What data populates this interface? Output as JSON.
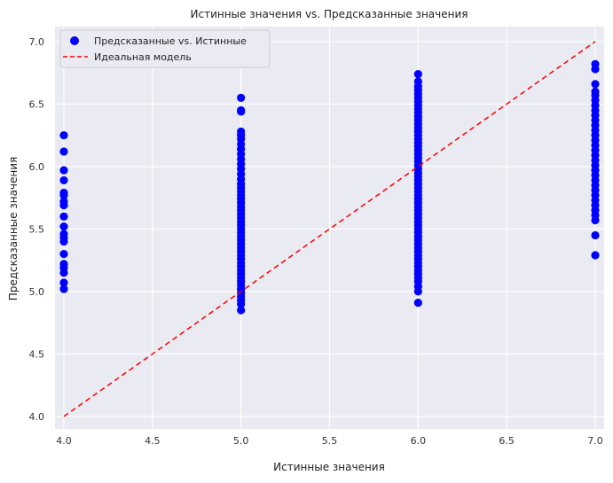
{
  "chart_data": {
    "type": "scatter",
    "title": "Истинные значения vs. Предсказанные значения",
    "xlabel": "Истинные значения",
    "ylabel": "Предсказанные значения",
    "xlim": [
      3.95,
      7.05
    ],
    "ylim": [
      3.9,
      7.12
    ],
    "xticks": [
      "4.0",
      "4.5",
      "5.0",
      "5.5",
      "6.0",
      "6.5",
      "7.0"
    ],
    "yticks": [
      "4.0",
      "4.5",
      "5.0",
      "5.5",
      "6.0",
      "6.5",
      "7.0"
    ],
    "grid": true,
    "legend_position": "top-left",
    "background_color": "#eaeaf2",
    "series": [
      {
        "name": "Предсказанные vs. Истинные",
        "kind": "scatter",
        "color": "#0000ff",
        "points": [
          [
            4,
            6.25
          ],
          [
            4,
            6.12
          ],
          [
            4,
            5.97
          ],
          [
            4,
            5.89
          ],
          [
            4,
            5.79
          ],
          [
            4,
            5.77
          ],
          [
            4,
            5.72
          ],
          [
            4,
            5.69
          ],
          [
            4,
            5.6
          ],
          [
            4,
            5.52
          ],
          [
            4,
            5.46
          ],
          [
            4,
            5.43
          ],
          [
            4,
            5.4
          ],
          [
            4,
            5.3
          ],
          [
            4,
            5.22
          ],
          [
            4,
            5.19
          ],
          [
            4,
            5.15
          ],
          [
            4,
            5.07
          ],
          [
            4,
            5.02
          ],
          [
            5,
            6.55
          ],
          [
            5,
            6.45
          ],
          [
            5,
            6.44
          ],
          [
            5,
            6.28
          ],
          [
            5,
            6.25
          ],
          [
            5,
            6.22
          ],
          [
            5,
            6.18
          ],
          [
            5,
            6.14
          ],
          [
            5,
            6.1
          ],
          [
            5,
            6.06
          ],
          [
            5,
            6.02
          ],
          [
            5,
            5.98
          ],
          [
            5,
            5.94
          ],
          [
            5,
            5.9
          ],
          [
            5,
            5.86
          ],
          [
            5,
            5.83
          ],
          [
            5,
            5.8
          ],
          [
            5,
            5.77
          ],
          [
            5,
            5.74
          ],
          [
            5,
            5.71
          ],
          [
            5,
            5.68
          ],
          [
            5,
            5.65
          ],
          [
            5,
            5.62
          ],
          [
            5,
            5.59
          ],
          [
            5,
            5.56
          ],
          [
            5,
            5.53
          ],
          [
            5,
            5.5
          ],
          [
            5,
            5.47
          ],
          [
            5,
            5.44
          ],
          [
            5,
            5.41
          ],
          [
            5,
            5.38
          ],
          [
            5,
            5.35
          ],
          [
            5,
            5.32
          ],
          [
            5,
            5.29
          ],
          [
            5,
            5.26
          ],
          [
            5,
            5.23
          ],
          [
            5,
            5.2
          ],
          [
            5,
            5.17
          ],
          [
            5,
            5.14
          ],
          [
            5,
            5.11
          ],
          [
            5,
            5.08
          ],
          [
            5,
            5.05
          ],
          [
            5,
            5.02
          ],
          [
            5,
            4.99
          ],
          [
            5,
            4.96
          ],
          [
            5,
            4.93
          ],
          [
            5,
            4.9
          ],
          [
            5,
            4.85
          ],
          [
            6,
            6.74
          ],
          [
            6,
            6.68
          ],
          [
            6,
            6.64
          ],
          [
            6,
            6.61
          ],
          [
            6,
            6.58
          ],
          [
            6,
            6.55
          ],
          [
            6,
            6.52
          ],
          [
            6,
            6.49
          ],
          [
            6,
            6.46
          ],
          [
            6,
            6.43
          ],
          [
            6,
            6.4
          ],
          [
            6,
            6.37
          ],
          [
            6,
            6.34
          ],
          [
            6,
            6.31
          ],
          [
            6,
            6.28
          ],
          [
            6,
            6.25
          ],
          [
            6,
            6.22
          ],
          [
            6,
            6.19
          ],
          [
            6,
            6.16
          ],
          [
            6,
            6.13
          ],
          [
            6,
            6.1
          ],
          [
            6,
            6.07
          ],
          [
            6,
            6.04
          ],
          [
            6,
            6.01
          ],
          [
            6,
            5.98
          ],
          [
            6,
            5.95
          ],
          [
            6,
            5.92
          ],
          [
            6,
            5.89
          ],
          [
            6,
            5.86
          ],
          [
            6,
            5.83
          ],
          [
            6,
            5.8
          ],
          [
            6,
            5.77
          ],
          [
            6,
            5.74
          ],
          [
            6,
            5.71
          ],
          [
            6,
            5.68
          ],
          [
            6,
            5.65
          ],
          [
            6,
            5.62
          ],
          [
            6,
            5.59
          ],
          [
            6,
            5.56
          ],
          [
            6,
            5.53
          ],
          [
            6,
            5.5
          ],
          [
            6,
            5.47
          ],
          [
            6,
            5.44
          ],
          [
            6,
            5.41
          ],
          [
            6,
            5.38
          ],
          [
            6,
            5.35
          ],
          [
            6,
            5.32
          ],
          [
            6,
            5.29
          ],
          [
            6,
            5.26
          ],
          [
            6,
            5.23
          ],
          [
            6,
            5.2
          ],
          [
            6,
            5.17
          ],
          [
            6,
            5.14
          ],
          [
            6,
            5.11
          ],
          [
            6,
            5.08
          ],
          [
            6,
            5.04
          ],
          [
            6,
            5.0
          ],
          [
            6,
            4.91
          ],
          [
            7,
            6.82
          ],
          [
            7,
            6.78
          ],
          [
            7,
            6.66
          ],
          [
            7,
            6.6
          ],
          [
            7,
            6.57
          ],
          [
            7,
            6.53
          ],
          [
            7,
            6.49
          ],
          [
            7,
            6.45
          ],
          [
            7,
            6.41
          ],
          [
            7,
            6.37
          ],
          [
            7,
            6.33
          ],
          [
            7,
            6.29
          ],
          [
            7,
            6.25
          ],
          [
            7,
            6.21
          ],
          [
            7,
            6.17
          ],
          [
            7,
            6.13
          ],
          [
            7,
            6.09
          ],
          [
            7,
            6.05
          ],
          [
            7,
            6.01
          ],
          [
            7,
            5.97
          ],
          [
            7,
            5.93
          ],
          [
            7,
            5.89
          ],
          [
            7,
            5.85
          ],
          [
            7,
            5.81
          ],
          [
            7,
            5.77
          ],
          [
            7,
            5.73
          ],
          [
            7,
            5.69
          ],
          [
            7,
            5.65
          ],
          [
            7,
            5.61
          ],
          [
            7,
            5.57
          ],
          [
            7,
            5.45
          ],
          [
            7,
            5.29
          ]
        ]
      },
      {
        "name": "Идеальная модель",
        "kind": "line",
        "style": "dashed",
        "color": "#ff0000",
        "points": [
          [
            4,
            4
          ],
          [
            7,
            7
          ]
        ]
      }
    ]
  }
}
